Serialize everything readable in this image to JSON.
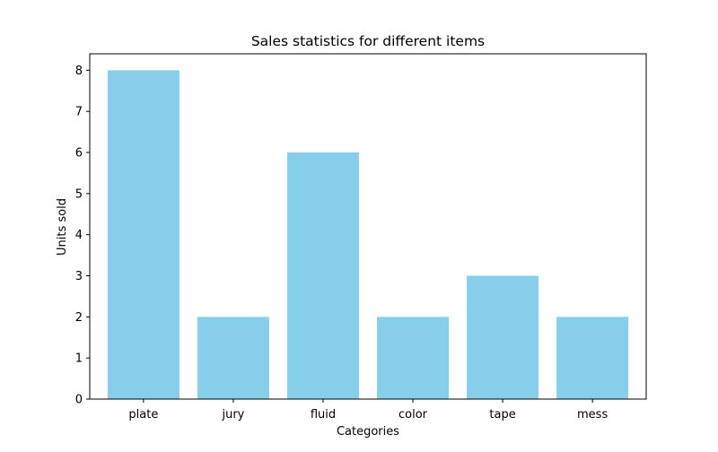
{
  "chart_data": {
    "type": "bar",
    "title": "Sales statistics for different items",
    "xlabel": "Categories",
    "ylabel": "Units sold",
    "categories": [
      "plate",
      "jury",
      "fluid",
      "color",
      "tape",
      "mess"
    ],
    "values": [
      8,
      2,
      6,
      2,
      3,
      2
    ],
    "ylim": [
      0,
      8.4
    ],
    "yticks": [
      "0",
      "1",
      "2",
      "3",
      "4",
      "5",
      "6",
      "7",
      "8"
    ],
    "bar_color": "#87CEEB",
    "grid": false,
    "legend": "none"
  }
}
